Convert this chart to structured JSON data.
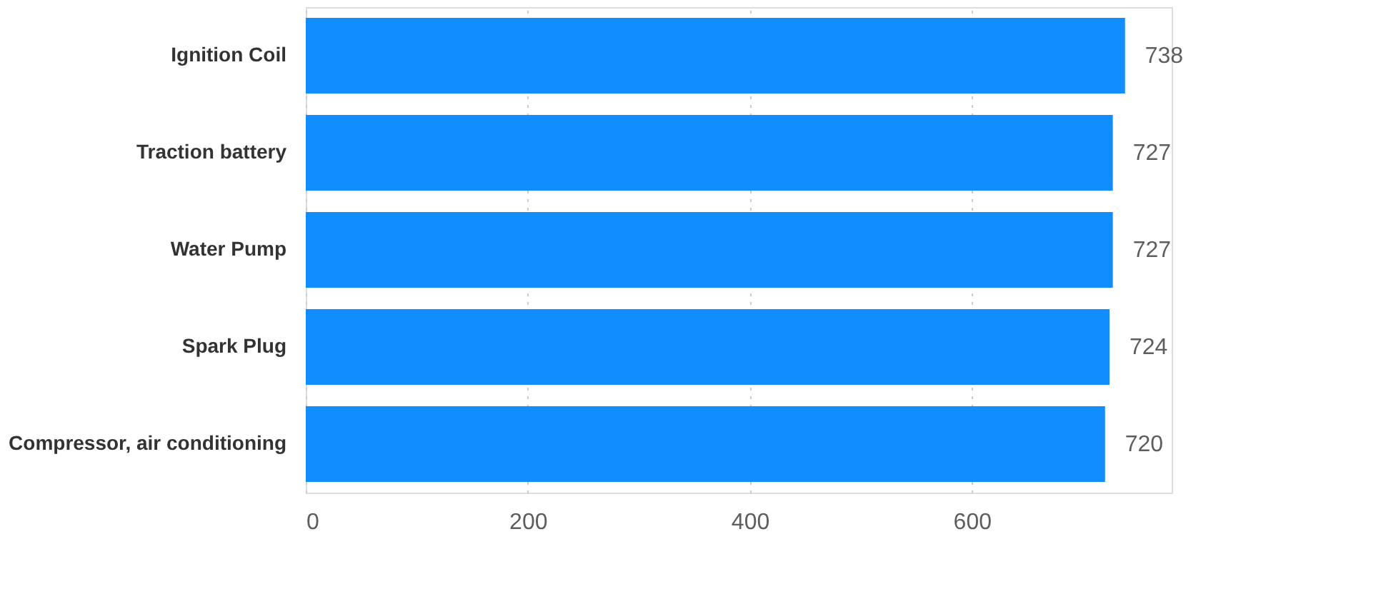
{
  "chart_data": {
    "type": "bar",
    "orientation": "horizontal",
    "categories": [
      "Ignition Coil",
      "Traction battery",
      "Water Pump",
      "Spark Plug",
      "Compressor, air conditioning"
    ],
    "values": [
      738,
      727,
      727,
      724,
      720
    ],
    "color": "#118dff",
    "xlim": [
      0,
      780
    ],
    "xticks": [
      0,
      200,
      400,
      600
    ],
    "grid": "x",
    "data_labels": true
  }
}
